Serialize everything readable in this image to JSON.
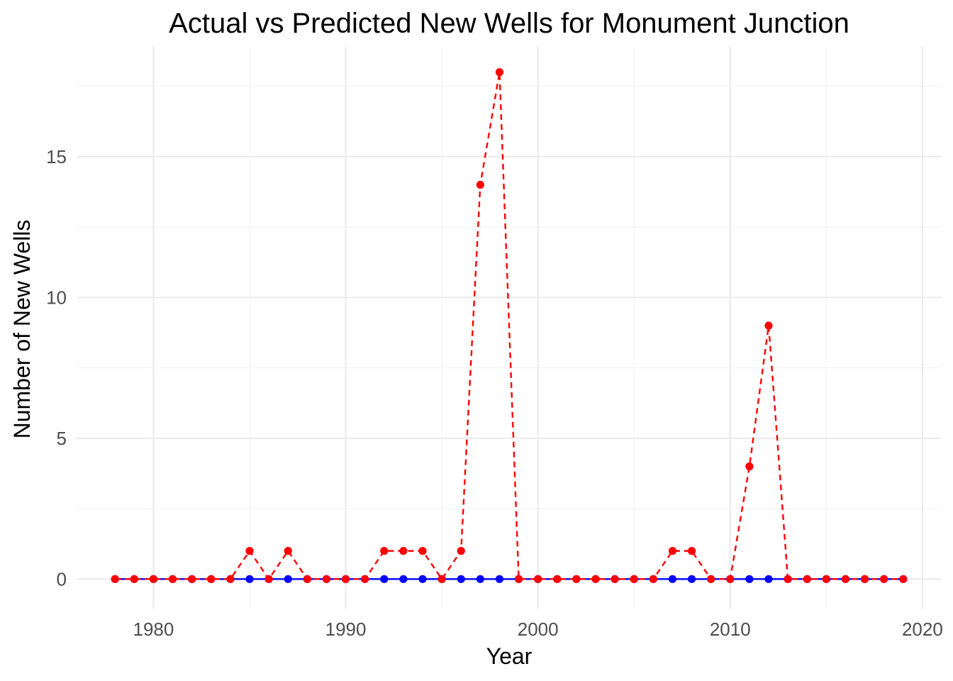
{
  "chart_data": {
    "type": "line",
    "title": "Actual vs Predicted New Wells for Monument Junction",
    "xlabel": "Year",
    "ylabel": "Number of New Wells",
    "xlim": [
      1976,
      2021
    ],
    "ylim": [
      -1.05,
      18.9
    ],
    "x_ticks": [
      1980,
      1990,
      2000,
      2010,
      2020
    ],
    "y_ticks": [
      0,
      5,
      10,
      15
    ],
    "grid": true,
    "legend": "none",
    "x": [
      1978,
      1979,
      1980,
      1981,
      1982,
      1983,
      1984,
      1985,
      1986,
      1987,
      1988,
      1989,
      1990,
      1991,
      1992,
      1993,
      1994,
      1995,
      1996,
      1997,
      1998,
      1999,
      2000,
      2001,
      2002,
      2003,
      2004,
      2005,
      2006,
      2007,
      2008,
      2009,
      2010,
      2011,
      2012,
      2013,
      2014,
      2015,
      2016,
      2017,
      2018,
      2019
    ],
    "series": [
      {
        "color": "#0000ff",
        "line_style": "solid",
        "values": [
          0,
          0,
          0,
          0,
          0,
          0,
          0,
          0,
          0,
          0,
          0,
          0,
          0,
          0,
          0,
          0,
          0,
          0,
          0,
          0,
          0,
          0,
          0,
          0,
          0,
          0,
          0,
          0,
          0,
          0,
          0,
          0,
          0,
          0,
          0,
          0,
          0,
          0,
          0,
          0,
          0,
          0
        ]
      },
      {
        "color": "#ff0000",
        "line_style": "dashed",
        "values": [
          0,
          0,
          0,
          0,
          0,
          0,
          0,
          1,
          0,
          1,
          0,
          0,
          0,
          0,
          1,
          1,
          1,
          0,
          1,
          14,
          18,
          0,
          0,
          0,
          0,
          0,
          0,
          0,
          0,
          1,
          1,
          0,
          0,
          4,
          9,
          0,
          0,
          0,
          0,
          0,
          0,
          0
        ]
      }
    ]
  }
}
